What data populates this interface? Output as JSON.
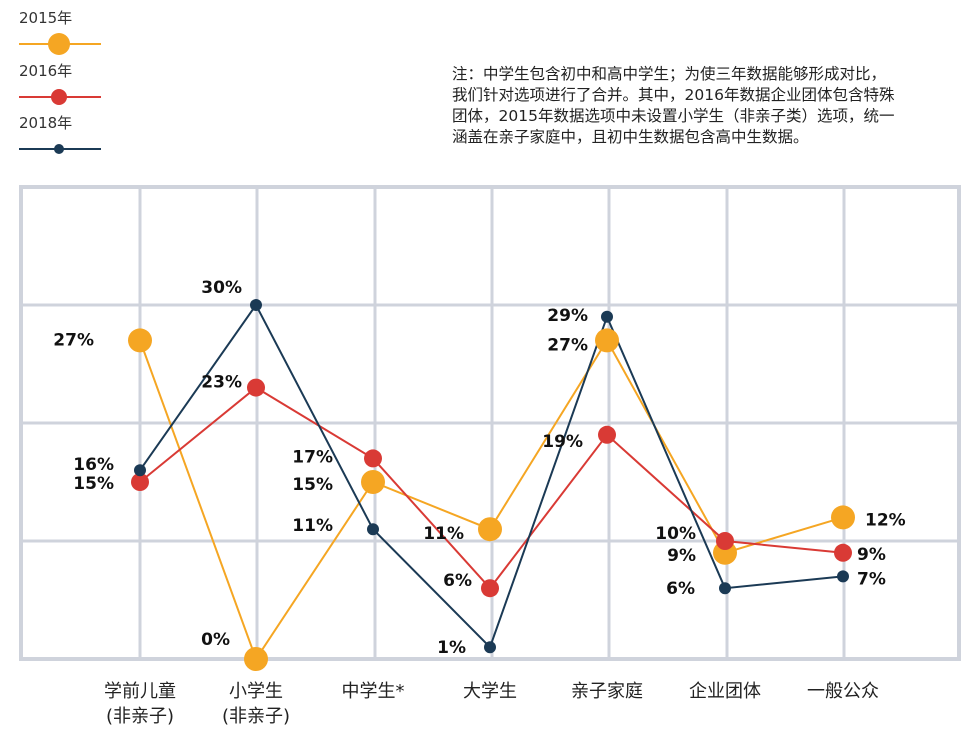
{
  "chart_data": {
    "type": "line",
    "title": "",
    "xlabel": "",
    "ylabel": "",
    "ylim": [
      0,
      40
    ],
    "grid": true,
    "legend_position": "top-left",
    "categories": [
      [
        "学前儿童",
        "(非亲子)"
      ],
      [
        "小学生",
        "(非亲子)"
      ],
      [
        "中学生*"
      ],
      [
        "大学生"
      ],
      [
        "亲子家庭"
      ],
      [
        "企业团体"
      ],
      [
        "一般公众"
      ]
    ],
    "series": [
      {
        "name": "2015年",
        "color": "#F5A623",
        "values": [
          27,
          0,
          15,
          11,
          27,
          9,
          12
        ],
        "labels": [
          "27%",
          "0%",
          "15%",
          "11%",
          "27%",
          "9%",
          "12%"
        ]
      },
      {
        "name": "2016年",
        "color": "#D93A35",
        "values": [
          15,
          23,
          17,
          6,
          19,
          10,
          9
        ],
        "labels": [
          "15%",
          "23%",
          "17%",
          "6%",
          "19%",
          "10%",
          "9%"
        ]
      },
      {
        "name": "2018年",
        "color": "#1B3A55",
        "values": [
          16,
          30,
          11,
          1,
          29,
          6,
          7
        ],
        "labels": [
          "16%",
          "30%",
          "11%",
          "1%",
          "29%",
          "6%",
          "7%"
        ]
      }
    ],
    "note": [
      "注：中学生包含初中和高中学生；为使三年数据能够形成对比，",
      "我们针对选项进行了合并。其中，2016年数据企业团体包含特殊",
      "团体，2015年数据选项中未设置小学生（非亲子类）选项，统一",
      "涵盖在亲子家庭中，且初中生数据包含高中生数据。"
    ],
    "grid_color": "#CFD3DC"
  }
}
